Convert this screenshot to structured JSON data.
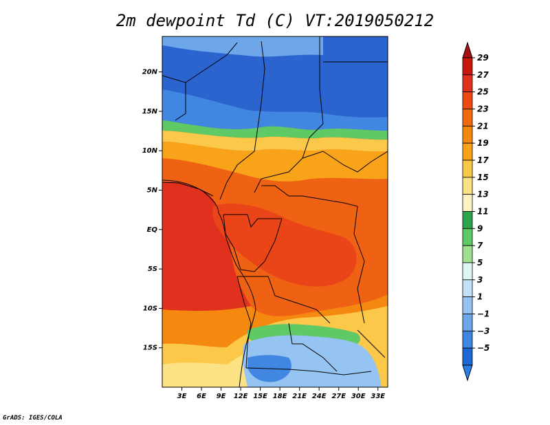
{
  "title": "2m dewpoint Td (C) VT:2019050212",
  "credit": "GrADS: IGES/COLA",
  "lat_ticks": [
    {
      "label": "20N",
      "lat": 20
    },
    {
      "label": "15N",
      "lat": 15
    },
    {
      "label": "10N",
      "lat": 10
    },
    {
      "label": "5N",
      "lat": 5
    },
    {
      "label": "EQ",
      "lat": 0
    },
    {
      "label": "5S",
      "lat": -5
    },
    {
      "label": "10S",
      "lat": -10
    },
    {
      "label": "15S",
      "lat": -15
    }
  ],
  "lon_ticks": [
    {
      "label": "3E",
      "lon": 3
    },
    {
      "label": "6E",
      "lon": 6
    },
    {
      "label": "9E",
      "lon": 9
    },
    {
      "label": "12E",
      "lon": 12
    },
    {
      "label": "15E",
      "lon": 15
    },
    {
      "label": "18E",
      "lon": 18
    },
    {
      "label": "21E",
      "lon": 21
    },
    {
      "label": "24E",
      "lon": 24
    },
    {
      "label": "27E",
      "lon": 27
    },
    {
      "label": "30E",
      "lon": 30
    },
    {
      "label": "33E",
      "lon": 33
    }
  ],
  "map_extent": {
    "lon_min": 0,
    "lon_max": 34.5,
    "lat_min": -20,
    "lat_max": 24.5
  },
  "colorbar": {
    "labels": [
      "29",
      "27",
      "25",
      "23",
      "21",
      "19",
      "17",
      "15",
      "13",
      "11",
      "9",
      "7",
      "5",
      "3",
      "1",
      "−1",
      "−3",
      "−5"
    ],
    "colors": [
      "#a50f15",
      "#c8190c",
      "#e0301e",
      "#ef4a14",
      "#f06a0f",
      "#f5880e",
      "#f9a31a",
      "#fbc84a",
      "#fde285",
      "#fbf4c2",
      "#2ea44c",
      "#5fc966",
      "#a0e08e",
      "#dff6f4",
      "#c2e0f8",
      "#96c4f2",
      "#6da7ea",
      "#4186e0",
      "#1d66d4",
      "#2a80e8"
    ]
  },
  "regions": [
    {
      "name": "northern-dry-zone",
      "color": "#2b64cf"
    },
    {
      "name": "sahel-gradient",
      "color": "#5fc966"
    },
    {
      "name": "humid-central",
      "color": "#ee5a14"
    },
    {
      "name": "coastal-humid",
      "color": "#e0301e"
    },
    {
      "name": "southern-moderate",
      "color": "#f9a31a"
    },
    {
      "name": "southern-dry",
      "color": "#96c4f2"
    }
  ]
}
